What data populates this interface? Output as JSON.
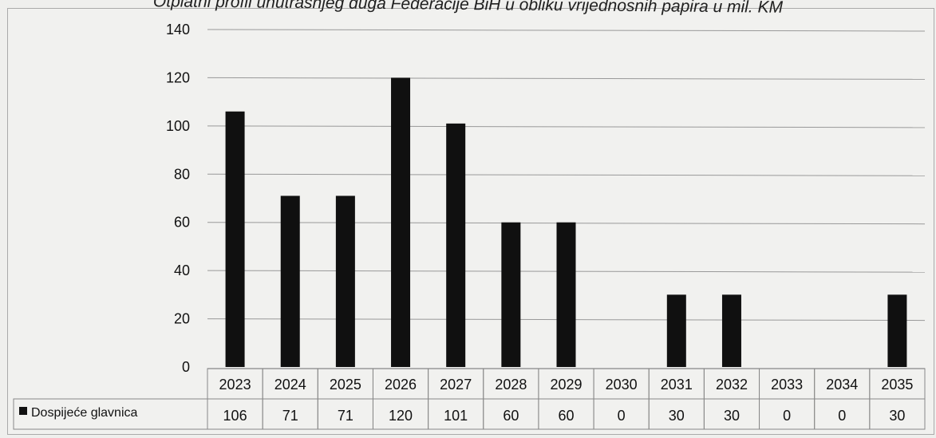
{
  "chart_data": {
    "type": "bar",
    "title": "Otplatni profil unutrašnjeg duga Federacije BiH u obliku vrijednosnih papira u mil. KM",
    "categories": [
      "2023",
      "2024",
      "2025",
      "2026",
      "2027",
      "2028",
      "2029",
      "2030",
      "2031",
      "2032",
      "2033",
      "2034",
      "2035"
    ],
    "series": [
      {
        "name": "Dospijeće glavnica",
        "values": [
          106,
          71,
          71,
          120,
          101,
          60,
          60,
          0,
          30,
          30,
          0,
          0,
          30
        ]
      }
    ],
    "yticks": [
      0,
      20,
      40,
      60,
      80,
      100,
      120,
      140
    ],
    "ylim": [
      0,
      140
    ],
    "grid": true,
    "legend": "data table row",
    "data_table": true,
    "bar_color": "#101010"
  }
}
